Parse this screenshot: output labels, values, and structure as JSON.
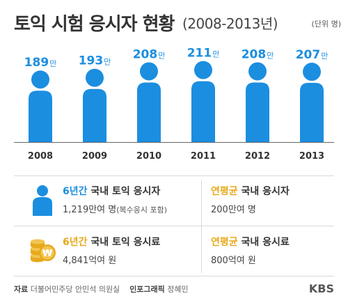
{
  "header": {
    "title_main": "토익 시험 응시자 현황",
    "title_sub": "(2008-2013년)",
    "unit": "(단위 명)"
  },
  "colors": {
    "accent_blue": "#1b8ee0",
    "accent_gold": "#e7a91b",
    "text_dark": "#333333"
  },
  "chart_data": {
    "type": "bar",
    "categories": [
      "2008",
      "2009",
      "2010",
      "2011",
      "2012",
      "2013"
    ],
    "values": [
      189,
      193,
      208,
      211,
      208,
      207
    ],
    "value_suffix": "만",
    "title": "토익 시험 응시자 현황",
    "xlabel": "",
    "ylabel": "",
    "grid": false,
    "mark_style": "person-silhouette"
  },
  "stats": {
    "total_applicants": {
      "icon": "person-icon",
      "head_highlight": "6년간",
      "head_rest": " 국내 토익 응시자",
      "value": "1,219만여 명",
      "note": "(복수응시 포함)"
    },
    "annual_applicants": {
      "head_highlight": "연평균",
      "head_rest": " 국내 응시자",
      "value": "200만여 명"
    },
    "total_fees": {
      "icon": "won-coins-icon",
      "head_highlight": "6년간",
      "head_rest": " 국내 토익 응시료",
      "value": "4,841억여 원"
    },
    "annual_fees": {
      "head_highlight": "연평균",
      "head_rest": " 국내 응시료",
      "value": "800억여 원"
    }
  },
  "footer": {
    "source_label": "자료",
    "source_value": "더불어민주당 안민석 의원실",
    "graphic_label": "인포그래픽",
    "graphic_value": "정혜민",
    "logo_text": "KBS"
  }
}
